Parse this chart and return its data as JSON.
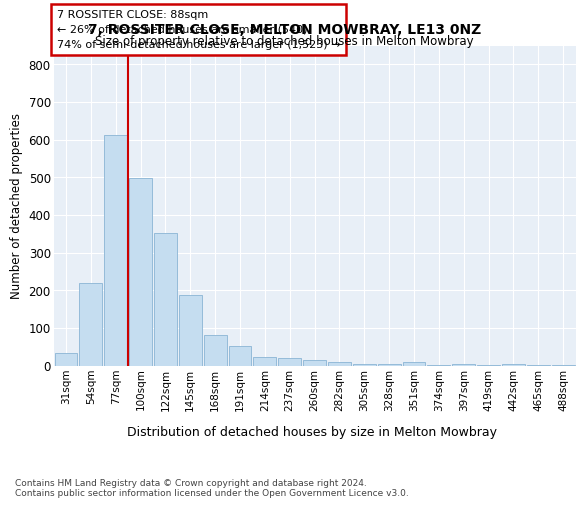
{
  "title1": "7, ROSSITER CLOSE, MELTON MOWBRAY, LE13 0NZ",
  "title2": "Size of property relative to detached houses in Melton Mowbray",
  "xlabel": "Distribution of detached houses by size in Melton Mowbray",
  "ylabel": "Number of detached properties",
  "categories": [
    "31sqm",
    "54sqm",
    "77sqm",
    "100sqm",
    "122sqm",
    "145sqm",
    "168sqm",
    "191sqm",
    "214sqm",
    "237sqm",
    "260sqm",
    "282sqm",
    "305sqm",
    "328sqm",
    "351sqm",
    "374sqm",
    "397sqm",
    "419sqm",
    "442sqm",
    "465sqm",
    "488sqm"
  ],
  "values": [
    33,
    218,
    613,
    497,
    353,
    187,
    82,
    52,
    22,
    20,
    14,
    9,
    5,
    5,
    8,
    2,
    3,
    1,
    5,
    1,
    1
  ],
  "bar_color": "#c5ddf0",
  "bar_edge_color": "#8ab4d4",
  "red_line_x": 2.48,
  "annotation_line1": "7 ROSSITER CLOSE: 88sqm",
  "annotation_line2": "← 26% of detached houses are smaller (540)",
  "annotation_line3": "74% of semi-detached houses are larger (1,523) →",
  "annotation_box_edge_color": "#cc0000",
  "ylim": [
    0,
    850
  ],
  "yticks": [
    0,
    100,
    200,
    300,
    400,
    500,
    600,
    700,
    800
  ],
  "background_color": "#e8eff7",
  "grid_color": "#ffffff",
  "fig_background": "#ffffff",
  "footer1": "Contains HM Land Registry data © Crown copyright and database right 2024.",
  "footer2": "Contains public sector information licensed under the Open Government Licence v3.0."
}
